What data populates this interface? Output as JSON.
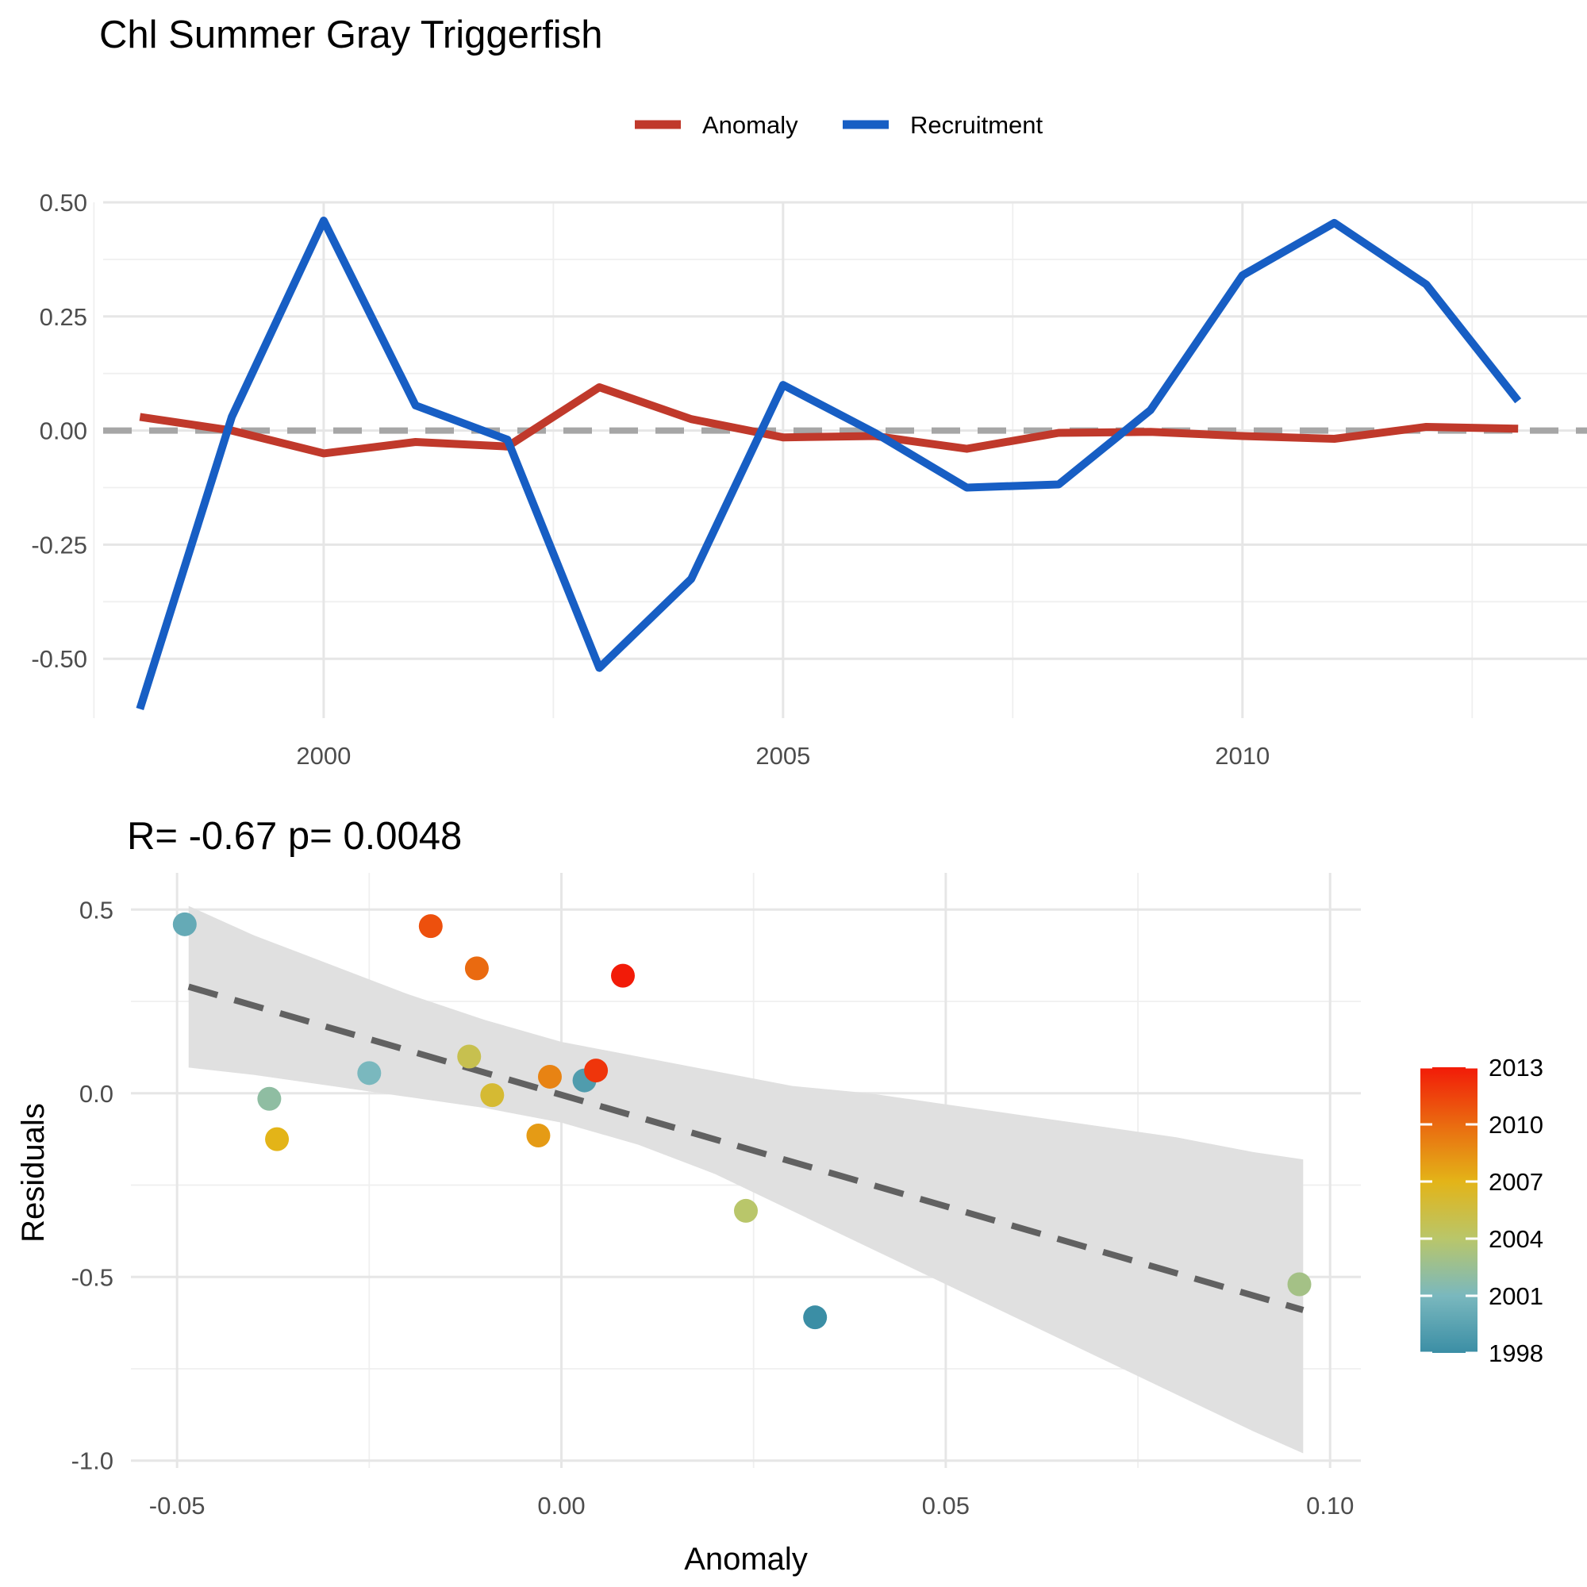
{
  "title": "Chl Summer Gray Triggerfish",
  "chart_data": [
    {
      "type": "line",
      "x": [
        1998,
        1999,
        2000,
        2001,
        2002,
        2003,
        2004,
        2005,
        2006,
        2007,
        2008,
        2009,
        2010,
        2011,
        2012,
        2013
      ],
      "series": [
        {
          "name": "Anomaly",
          "color": "#c0392b",
          "values": [
            0.03,
            0.0,
            -0.05,
            -0.025,
            -0.035,
            0.095,
            0.025,
            -0.015,
            -0.012,
            -0.04,
            -0.005,
            -0.003,
            -0.012,
            -0.018,
            0.008,
            0.004
          ]
        },
        {
          "name": "Recruitment",
          "color": "#175ec4",
          "values": [
            -0.61,
            0.03,
            0.46,
            0.055,
            -0.02,
            -0.52,
            -0.325,
            0.1,
            -0.005,
            -0.125,
            -0.118,
            0.045,
            0.34,
            0.455,
            0.32,
            0.065
          ]
        }
      ],
      "xlim": [
        1997.6,
        2013.75
      ],
      "ylim": [
        -0.63,
        0.5
      ],
      "x_ticks": [
        2000,
        2005,
        2010
      ],
      "y_ticks": [
        -0.5,
        -0.25,
        0.0,
        0.25,
        0.5
      ],
      "y_tick_labels": [
        "-0.50",
        "-0.25",
        "0.00",
        "0.25",
        "0.50"
      ],
      "reference_line": {
        "y": 0,
        "style": "dashed",
        "color": "#a6a6a6"
      },
      "legend": {
        "position": "top-center",
        "entries": [
          "Anomaly",
          "Recruitment"
        ]
      },
      "grid": true
    },
    {
      "type": "scatter",
      "title": "R= -0.67  p= 0.0048",
      "xlabel": "Anomaly",
      "ylabel": "Residuals",
      "points": [
        {
          "x": 0.033,
          "y": -0.61,
          "year": 1998
        },
        {
          "x": -0.049,
          "y": 0.46,
          "year": 2000
        },
        {
          "x": -0.025,
          "y": 0.055,
          "year": 2001
        },
        {
          "x": -0.038,
          "y": -0.015,
          "year": 2002
        },
        {
          "x": 0.003,
          "y": 0.035,
          "year": 1999
        },
        {
          "x": 0.096,
          "y": -0.52,
          "year": 2003
        },
        {
          "x": 0.024,
          "y": -0.32,
          "year": 2004
        },
        {
          "x": -0.012,
          "y": 0.1,
          "year": 2005
        },
        {
          "x": -0.009,
          "y": -0.005,
          "year": 2006
        },
        {
          "x": -0.037,
          "y": -0.125,
          "year": 2007
        },
        {
          "x": -0.003,
          "y": -0.115,
          "year": 2008
        },
        {
          "x": -0.0015,
          "y": 0.045,
          "year": 2009
        },
        {
          "x": -0.011,
          "y": 0.34,
          "year": 2010
        },
        {
          "x": -0.017,
          "y": 0.455,
          "year": 2011
        },
        {
          "x": 0.008,
          "y": 0.32,
          "year": 2013
        },
        {
          "x": 0.0045,
          "y": 0.062,
          "year": 2012
        }
      ],
      "fit": {
        "x": [
          -0.0485,
          0.0965
        ],
        "y": [
          0.29,
          -0.59
        ],
        "style": "dashed",
        "color": "#616161"
      },
      "confidence_band": {
        "x": [
          -0.0485,
          -0.04,
          -0.03,
          -0.02,
          -0.01,
          0.0,
          0.01,
          0.02,
          0.03,
          0.04,
          0.05,
          0.06,
          0.07,
          0.08,
          0.09,
          0.0965
        ],
        "upper": [
          0.51,
          0.43,
          0.35,
          0.27,
          0.2,
          0.14,
          0.1,
          0.06,
          0.02,
          0.0,
          -0.03,
          -0.06,
          -0.09,
          -0.12,
          -0.16,
          -0.18
        ],
        "lower": [
          0.07,
          0.05,
          0.02,
          -0.01,
          -0.04,
          -0.08,
          -0.14,
          -0.22,
          -0.32,
          -0.42,
          -0.52,
          -0.62,
          -0.72,
          -0.82,
          -0.92,
          -0.98
        ],
        "color": "#e0e0e0"
      },
      "xlim": [
        -0.056,
        0.104
      ],
      "ylim": [
        -1.02,
        0.6
      ],
      "x_ticks": [
        -0.05,
        0.0,
        0.05,
        0.1
      ],
      "x_tick_labels": [
        "-0.05",
        "0.00",
        "0.05",
        "0.10"
      ],
      "y_ticks": [
        -1.0,
        -0.5,
        0.0,
        0.5
      ],
      "y_tick_labels": [
        "-1.0",
        "-0.5",
        "0.0",
        "0.5"
      ],
      "colorbar": {
        "position": "right",
        "ticks": [
          1998,
          2001,
          2004,
          2007,
          2010,
          2013
        ],
        "range": [
          1998,
          2013
        ],
        "stops": [
          {
            "year": 1998,
            "color": "#3b8ea5"
          },
          {
            "year": 2001,
            "color": "#7ab8be"
          },
          {
            "year": 2004,
            "color": "#b9c66a"
          },
          {
            "year": 2007,
            "color": "#e3b418"
          },
          {
            "year": 2010,
            "color": "#ea6a10"
          },
          {
            "year": 2013,
            "color": "#f21b08"
          }
        ]
      },
      "grid": true
    }
  ]
}
